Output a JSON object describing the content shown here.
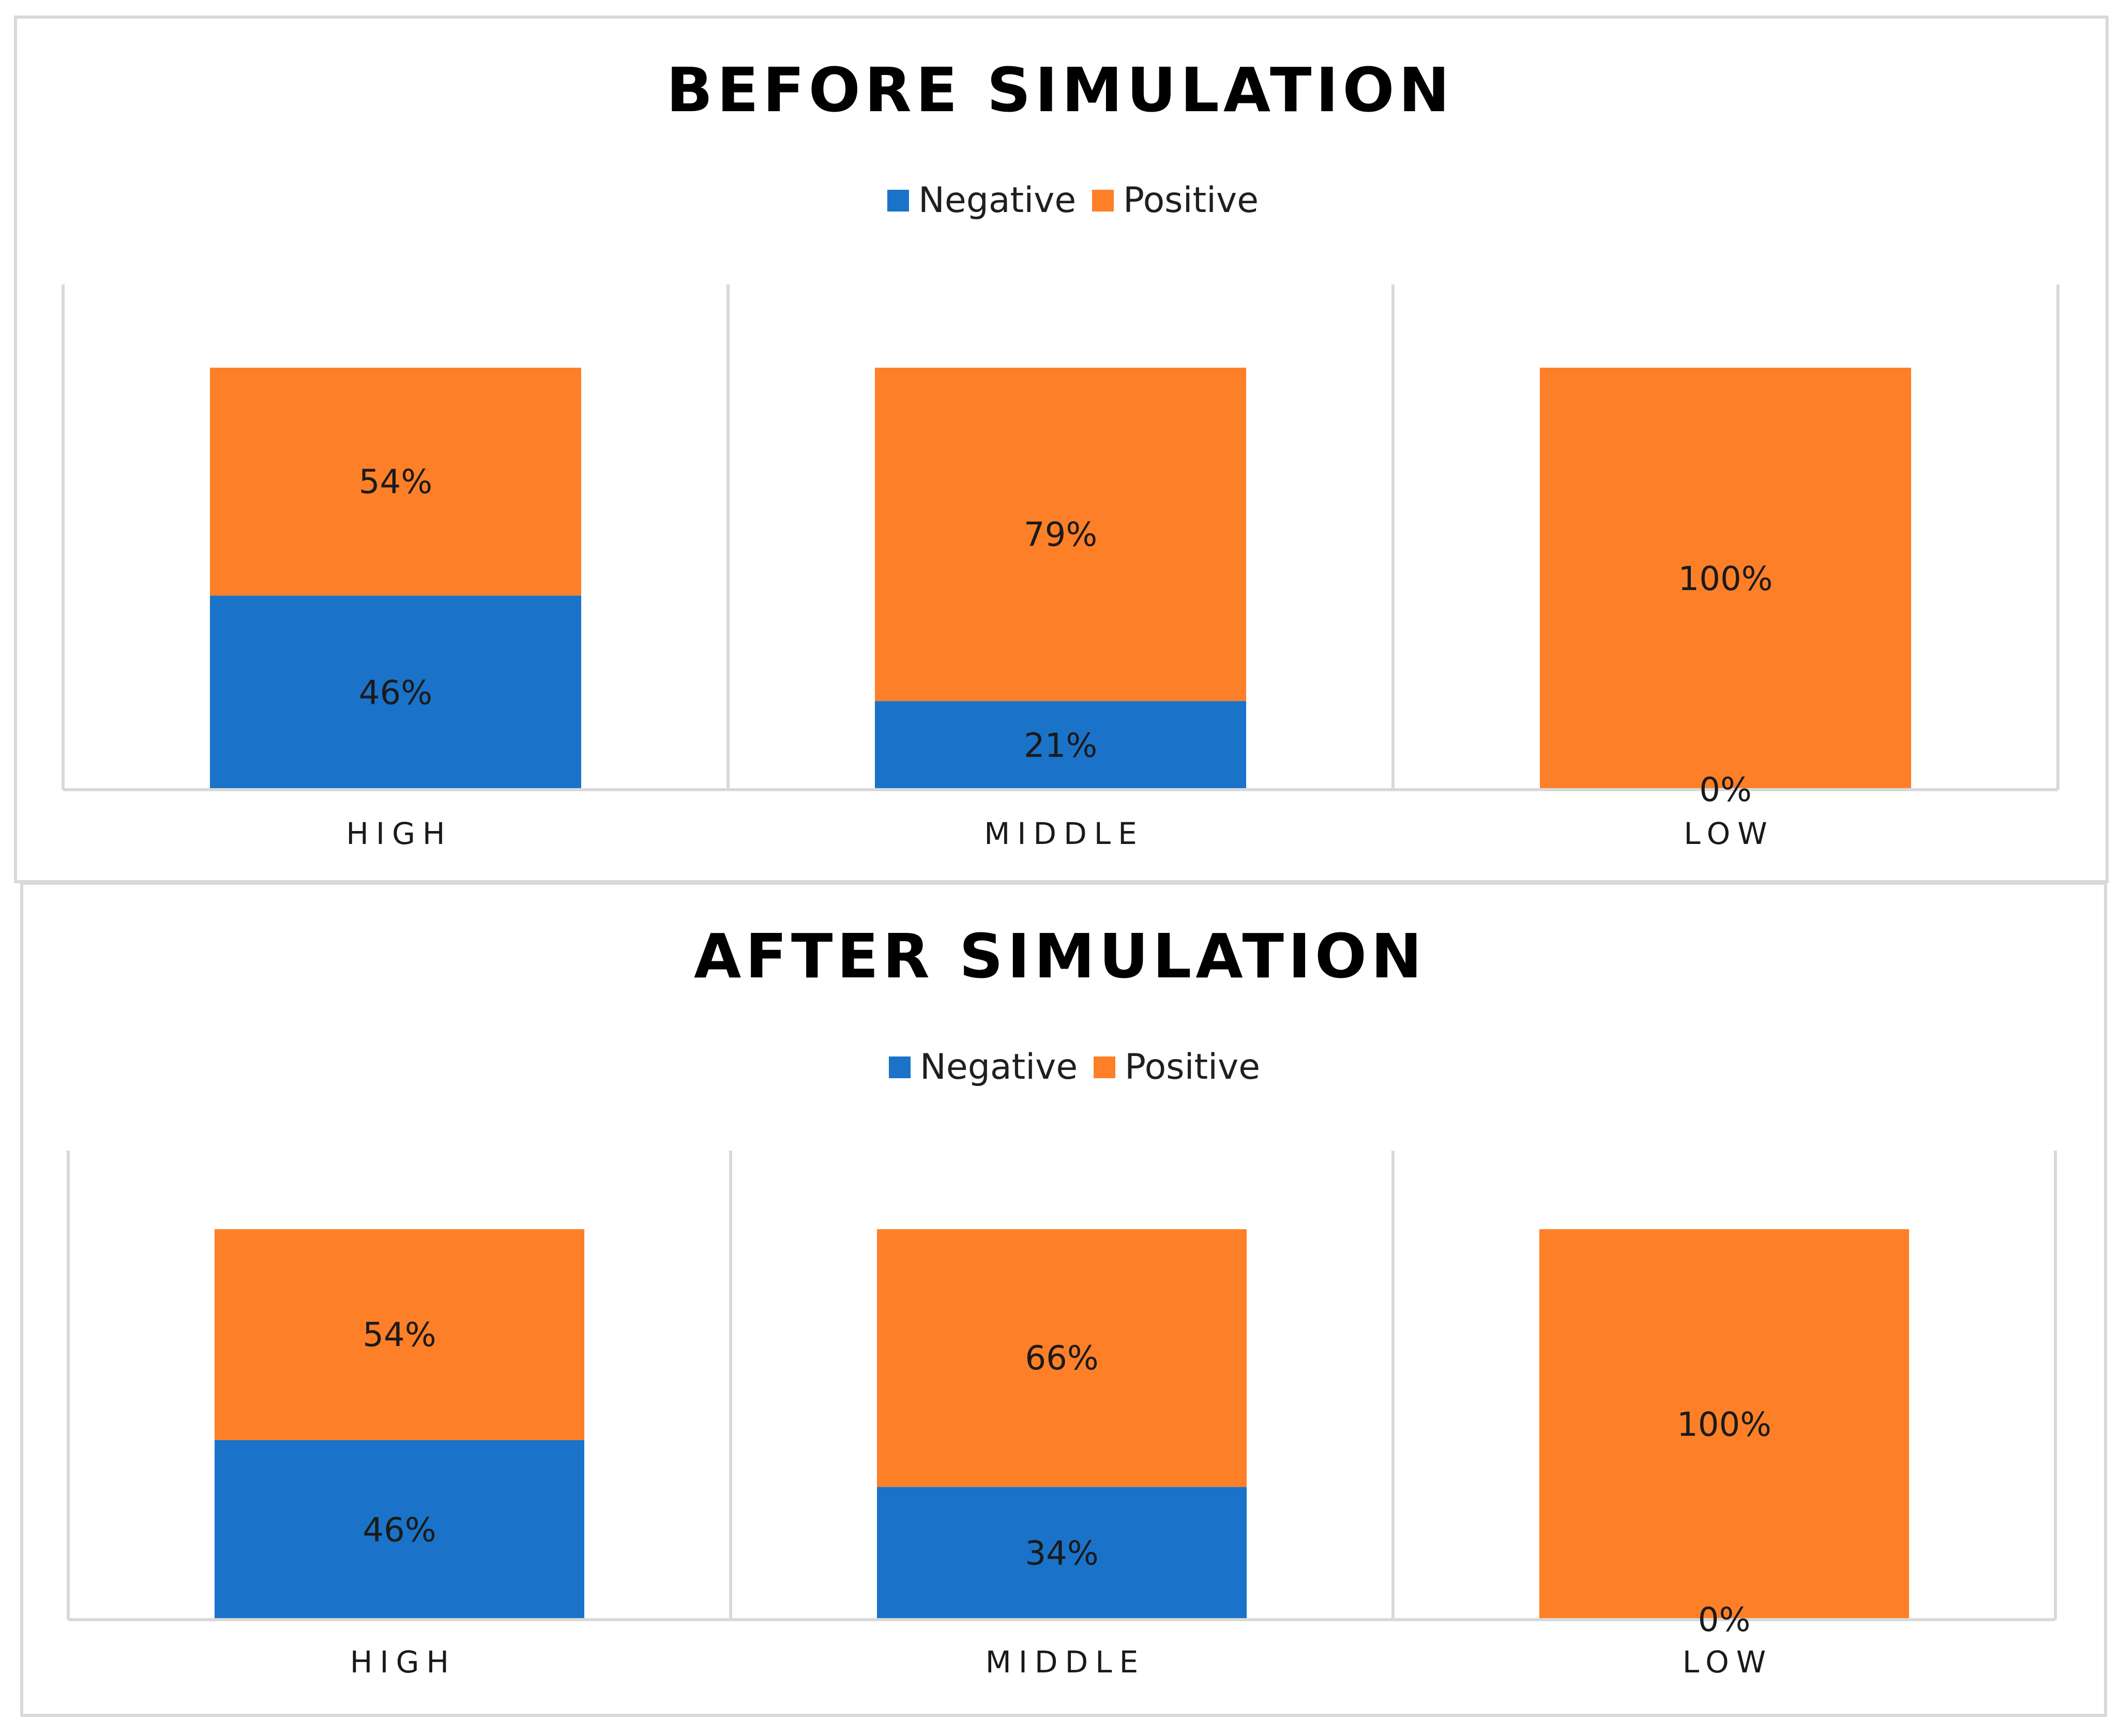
{
  "colors": {
    "negative": "#1a73c8",
    "positive": "#fd7f28"
  },
  "chart_data": [
    {
      "type": "bar",
      "stacked": true,
      "percent_stacked": true,
      "title": "BEFORE SIMULATION",
      "categories": [
        "HIGH",
        "MIDDLE",
        "LOW"
      ],
      "series": [
        {
          "name": "Negative",
          "values": [
            46,
            21,
            0
          ],
          "labels": [
            "46%",
            "21%",
            "0%"
          ]
        },
        {
          "name": "Positive",
          "values": [
            54,
            79,
            100
          ],
          "labels": [
            "54%",
            "79%",
            "100%"
          ]
        }
      ],
      "ylim": [
        0,
        100
      ],
      "xlabel": "",
      "ylabel": "",
      "legend": "top-center",
      "grid": "vertical separators"
    },
    {
      "type": "bar",
      "stacked": true,
      "percent_stacked": true,
      "title": "AFTER SIMULATION",
      "categories": [
        "HIGH",
        "MIDDLE",
        "LOW"
      ],
      "series": [
        {
          "name": "Negative",
          "values": [
            46,
            34,
            0
          ],
          "labels": [
            "46%",
            "34%",
            "0%"
          ]
        },
        {
          "name": "Positive",
          "values": [
            54,
            66,
            100
          ],
          "labels": [
            "54%",
            "66%",
            "100%"
          ]
        }
      ],
      "ylim": [
        0,
        100
      ],
      "xlabel": "",
      "ylabel": "",
      "legend": "top-center",
      "grid": "vertical separators"
    }
  ]
}
